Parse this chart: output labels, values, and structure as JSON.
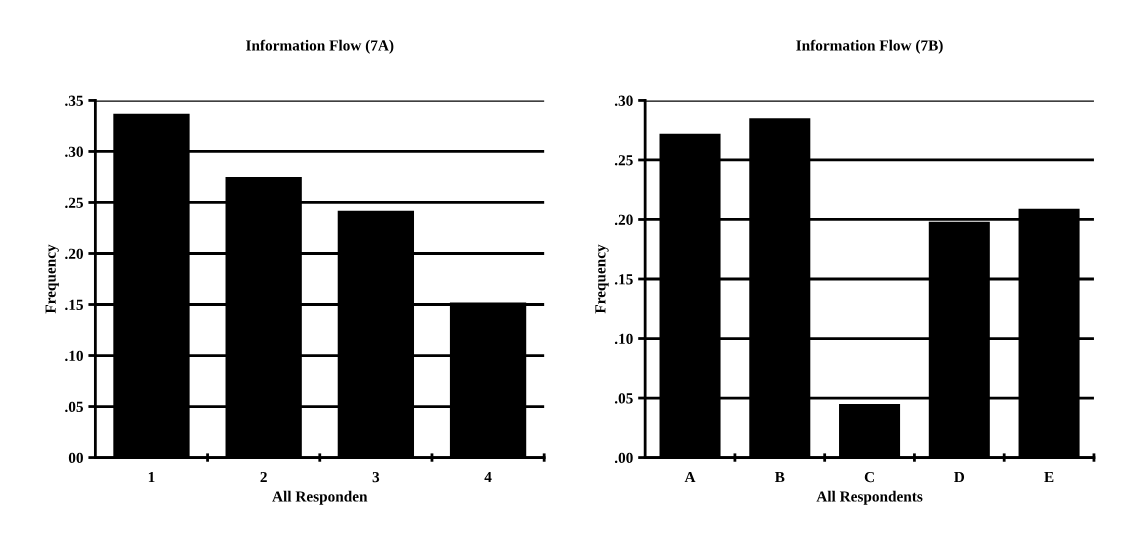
{
  "chart_data": [
    {
      "type": "bar",
      "title": "Information Flow (7A)",
      "xlabel": "All Responden",
      "ylabel": "Frequency",
      "categories": [
        "1",
        "2",
        "3",
        "4"
      ],
      "values": [
        0.337,
        0.275,
        0.242,
        0.152
      ],
      "color": "#000000",
      "ylim": [
        0,
        0.35
      ],
      "yticks": [
        {
          "value": 0,
          "label": "00"
        },
        {
          "value": 0.05,
          "label": ".05"
        },
        {
          "value": 0.1,
          "label": ".10"
        },
        {
          "value": 0.15,
          "label": ".15"
        },
        {
          "value": 0.2,
          "label": ".20"
        },
        {
          "value": 0.25,
          "label": ".25"
        },
        {
          "value": 0.3,
          "label": ".30"
        },
        {
          "value": 0.35,
          "label": ".35"
        }
      ],
      "grid": "y"
    },
    {
      "type": "bar",
      "title": "Information Flow (7B)",
      "xlabel": "All Respondents",
      "ylabel": "Frequency",
      "categories": [
        "A",
        "B",
        "C",
        "D",
        "E"
      ],
      "values": [
        0.272,
        0.285,
        0.045,
        0.198,
        0.209
      ],
      "color": "#000000",
      "ylim": [
        0,
        0.3
      ],
      "yticks": [
        {
          "value": 0,
          "label": ".00"
        },
        {
          "value": 0.05,
          "label": ".05"
        },
        {
          "value": 0.1,
          "label": ".10"
        },
        {
          "value": 0.15,
          "label": ".15"
        },
        {
          "value": 0.2,
          "label": ".20"
        },
        {
          "value": 0.25,
          "label": ".25"
        },
        {
          "value": 0.3,
          "label": ".30"
        }
      ],
      "grid": "y"
    }
  ]
}
